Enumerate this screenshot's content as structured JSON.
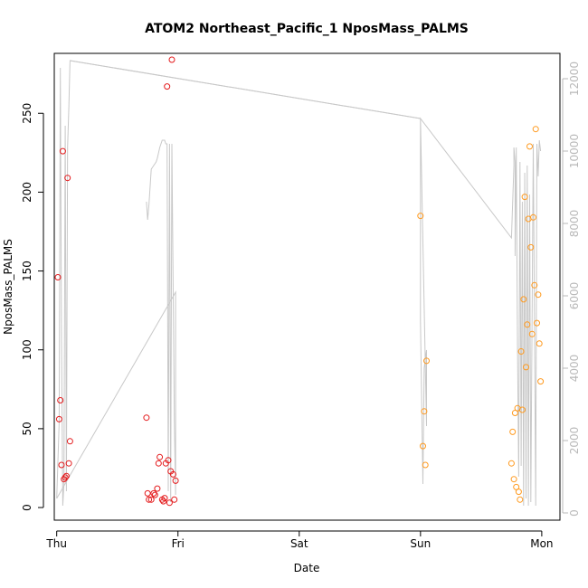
{
  "chart_data": {
    "type": "scatter",
    "title": "ATOM2 Northeast_Pacific_1 NposMass_PALMS",
    "xlabel": "Date",
    "ylabel": "NposMass_PALMS",
    "x_ticks": [
      "Thu",
      "Fri",
      "Sat",
      "Sun",
      "Mon"
    ],
    "xlim": [
      -0.02,
      4.15
    ],
    "ylim": [
      -8,
      288
    ],
    "y_ticks": [
      0,
      50,
      100,
      150,
      200,
      250
    ],
    "y2lim": [
      -200,
      12700
    ],
    "y2_ticks": [
      0,
      2000,
      4000,
      6000,
      8000,
      10000,
      12000
    ],
    "colors": {
      "red": "#e41a1c",
      "orange": "#ff9a1f",
      "line": "#c8c8c8",
      "axis": "#000000",
      "axis2": "#b8b8b8"
    },
    "series": [
      {
        "color": "red",
        "points": [
          [
            0.01,
            146
          ],
          [
            0.02,
            56
          ],
          [
            0.03,
            68
          ],
          [
            0.04,
            27
          ],
          [
            0.05,
            226
          ],
          [
            0.06,
            18
          ],
          [
            0.07,
            19
          ],
          [
            0.08,
            20
          ],
          [
            0.09,
            209
          ],
          [
            0.1,
            28
          ],
          [
            0.11,
            42
          ],
          [
            0.74,
            57
          ],
          [
            0.75,
            9
          ],
          [
            0.76,
            5
          ],
          [
            0.78,
            5
          ],
          [
            0.8,
            9
          ],
          [
            0.81,
            8
          ],
          [
            0.83,
            12
          ],
          [
            0.84,
            28
          ],
          [
            0.85,
            32
          ],
          [
            0.87,
            5
          ],
          [
            0.88,
            4
          ],
          [
            0.89,
            6
          ],
          [
            0.9,
            28
          ],
          [
            0.91,
            267
          ],
          [
            0.92,
            30
          ],
          [
            0.93,
            3
          ],
          [
            0.94,
            23
          ],
          [
            0.95,
            284
          ],
          [
            0.96,
            21
          ],
          [
            0.97,
            5
          ],
          [
            0.98,
            17
          ]
        ]
      },
      {
        "color": "orange",
        "points": [
          [
            3.0,
            185
          ],
          [
            3.02,
            39
          ],
          [
            3.03,
            61
          ],
          [
            3.04,
            27
          ],
          [
            3.05,
            93
          ],
          [
            3.75,
            28
          ],
          [
            3.76,
            48
          ],
          [
            3.77,
            18
          ],
          [
            3.78,
            60
          ],
          [
            3.79,
            13
          ],
          [
            3.8,
            63
          ],
          [
            3.81,
            10
          ],
          [
            3.82,
            5
          ],
          [
            3.83,
            99
          ],
          [
            3.84,
            62
          ],
          [
            3.85,
            132
          ],
          [
            3.86,
            197
          ],
          [
            3.87,
            89
          ],
          [
            3.88,
            116
          ],
          [
            3.89,
            183
          ],
          [
            3.9,
            229
          ],
          [
            3.91,
            165
          ],
          [
            3.92,
            110
          ],
          [
            3.93,
            184
          ],
          [
            3.94,
            141
          ],
          [
            3.95,
            240
          ],
          [
            3.96,
            117
          ],
          [
            3.97,
            135
          ],
          [
            3.98,
            104
          ],
          [
            3.99,
            80
          ]
        ]
      }
    ],
    "line_right_axis": [
      [
        0.0,
        400
      ],
      [
        0.02,
        2500
      ],
      [
        0.03,
        12300
      ],
      [
        0.04,
        4800
      ],
      [
        0.05,
        200
      ],
      [
        0.06,
        800
      ],
      [
        0.07,
        10700
      ],
      [
        0.08,
        600
      ],
      [
        0.09,
        10100
      ],
      [
        0.1,
        11200
      ],
      [
        0.11,
        12500
      ],
      [
        3.0,
        10900
      ],
      [
        3.0,
        5300
      ],
      [
        3.02,
        800
      ],
      [
        3.03,
        4000
      ],
      [
        3.05,
        4500
      ],
      [
        3.05,
        2400
      ],
      [
        3.0,
        10900
      ],
      [
        3.75,
        7600
      ],
      [
        3.77,
        9600
      ],
      [
        3.77,
        10100
      ],
      [
        3.78,
        9700
      ],
      [
        3.78,
        7100
      ],
      [
        3.79,
        10100
      ],
      [
        3.8,
        4500
      ],
      [
        3.81,
        1000
      ],
      [
        3.82,
        9700
      ],
      [
        3.83,
        1300
      ],
      [
        3.84,
        8600
      ],
      [
        3.85,
        200
      ],
      [
        3.86,
        9400
      ],
      [
        3.87,
        400
      ],
      [
        3.88,
        9600
      ],
      [
        3.89,
        200
      ],
      [
        3.9,
        8800
      ],
      [
        3.91,
        300
      ],
      [
        3.93,
        10200
      ],
      [
        3.95,
        200
      ],
      [
        3.96,
        10200
      ],
      [
        3.97,
        9300
      ],
      [
        3.98,
        10300
      ],
      [
        3.99,
        10000
      ]
    ],
    "line_right_axis_2": [
      [
        0.0,
        400
      ],
      [
        0.98,
        6100
      ],
      [
        0.98,
        500
      ],
      [
        0.97,
        2600
      ],
      [
        0.95,
        10200
      ],
      [
        0.94,
        300
      ],
      [
        0.93,
        10200
      ],
      [
        0.92,
        600
      ],
      [
        0.91,
        10200
      ],
      [
        0.9,
        10200
      ],
      [
        0.89,
        10300
      ],
      [
        0.87,
        10300
      ],
      [
        0.85,
        10100
      ],
      [
        0.83,
        9800
      ],
      [
        0.82,
        9700
      ],
      [
        0.8,
        9600
      ],
      [
        0.78,
        9500
      ],
      [
        0.76,
        8500
      ],
      [
        0.75,
        8100
      ],
      [
        0.74,
        8600
      ]
    ],
    "line_right_axis_3": [
      [
        0.11,
        12500
      ],
      [
        3.0,
        10900
      ]
    ]
  }
}
